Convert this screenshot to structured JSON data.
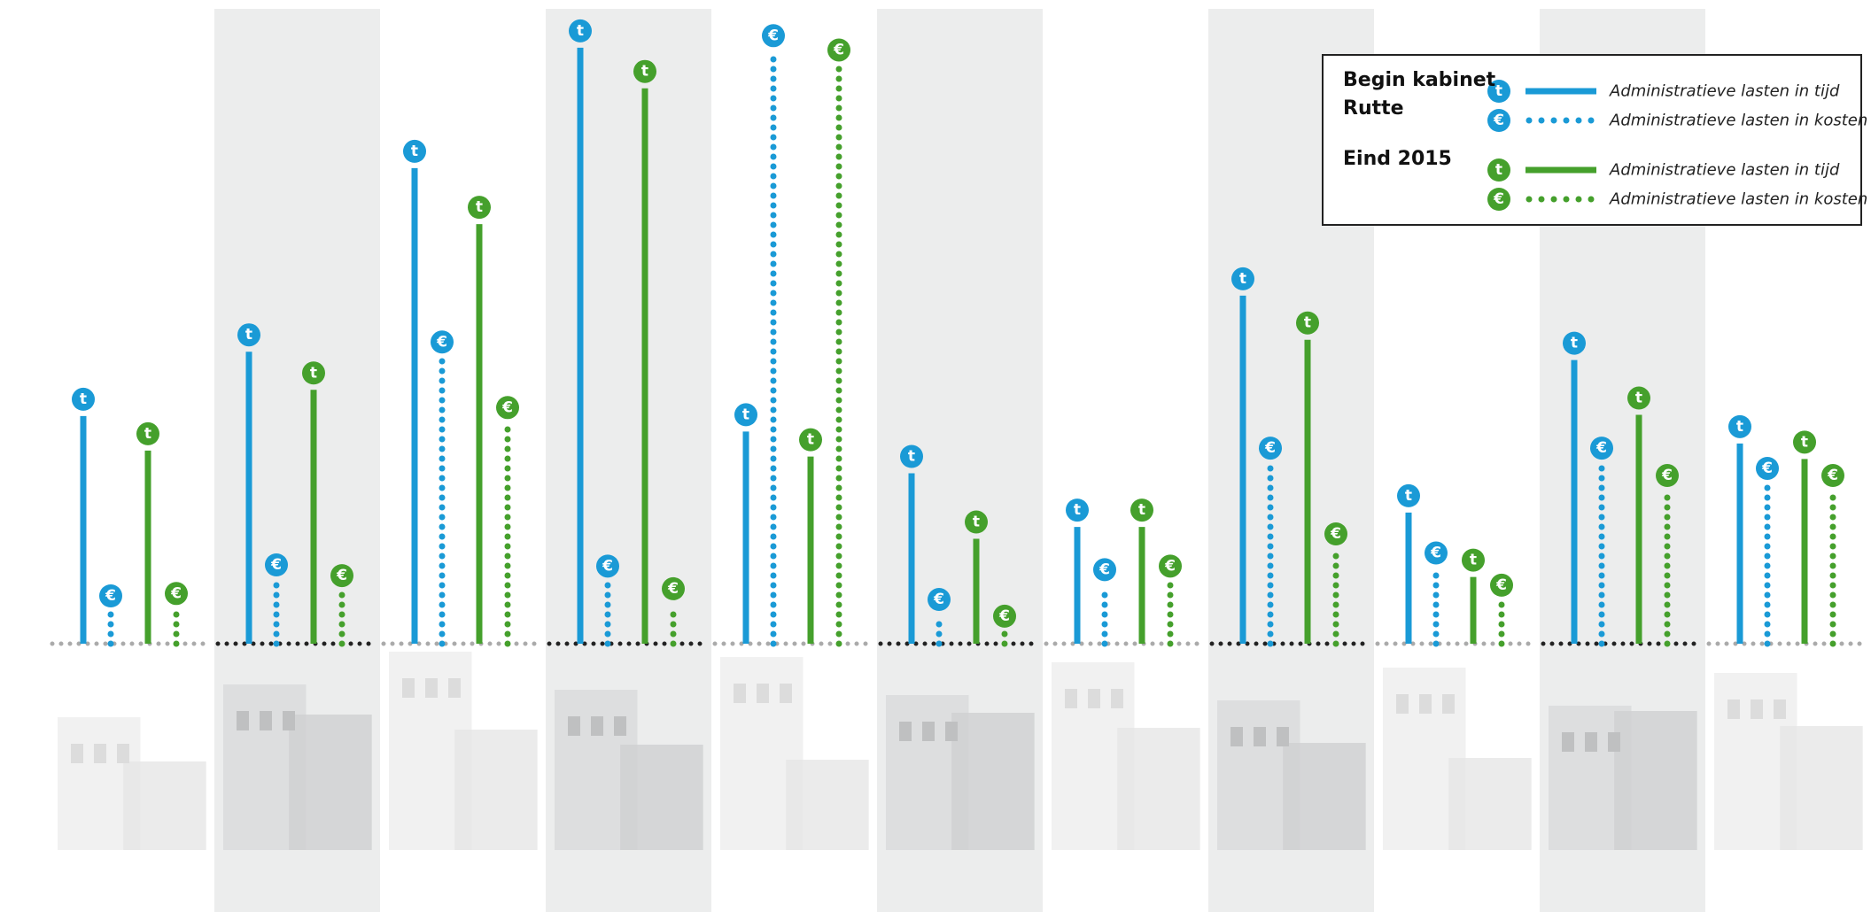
{
  "chart_data": {
    "type": "bar",
    "groups": [
      {
        "title": "Begin kabinet Rutte",
        "series": [
          {
            "name": "Administratieve lasten in tijd",
            "icon": "t",
            "color": "#1a9ad6",
            "style": "solid",
            "values": [
              191,
              245,
              399,
              500,
              178,
              143,
              98,
              292,
              110,
              238,
              168
            ]
          },
          {
            "name": "Administratieve lasten  in kosten",
            "icon": "€",
            "color": "#1a9ad6",
            "style": "dotted",
            "values": [
              26,
              52,
              239,
              51,
              496,
              23,
              48,
              150,
              62,
              150,
              133
            ]
          }
        ]
      },
      {
        "title": "Eind 2015",
        "series": [
          {
            "name": "Administratieve lasten in tijd",
            "icon": "t",
            "color": "#45a02c",
            "style": "solid",
            "values": [
              162,
              213,
              352,
              466,
              157,
              88,
              98,
              255,
              56,
              192,
              155
            ]
          },
          {
            "name": "Administratieve lasten in kosten",
            "icon": "€",
            "color": "#45a02c",
            "style": "dotted",
            "values": [
              28,
              43,
              184,
              32,
              484,
              9,
              51,
              78,
              35,
              127,
              127
            ]
          }
        ]
      }
    ],
    "ylim": [
      0,
      520
    ]
  }
}
